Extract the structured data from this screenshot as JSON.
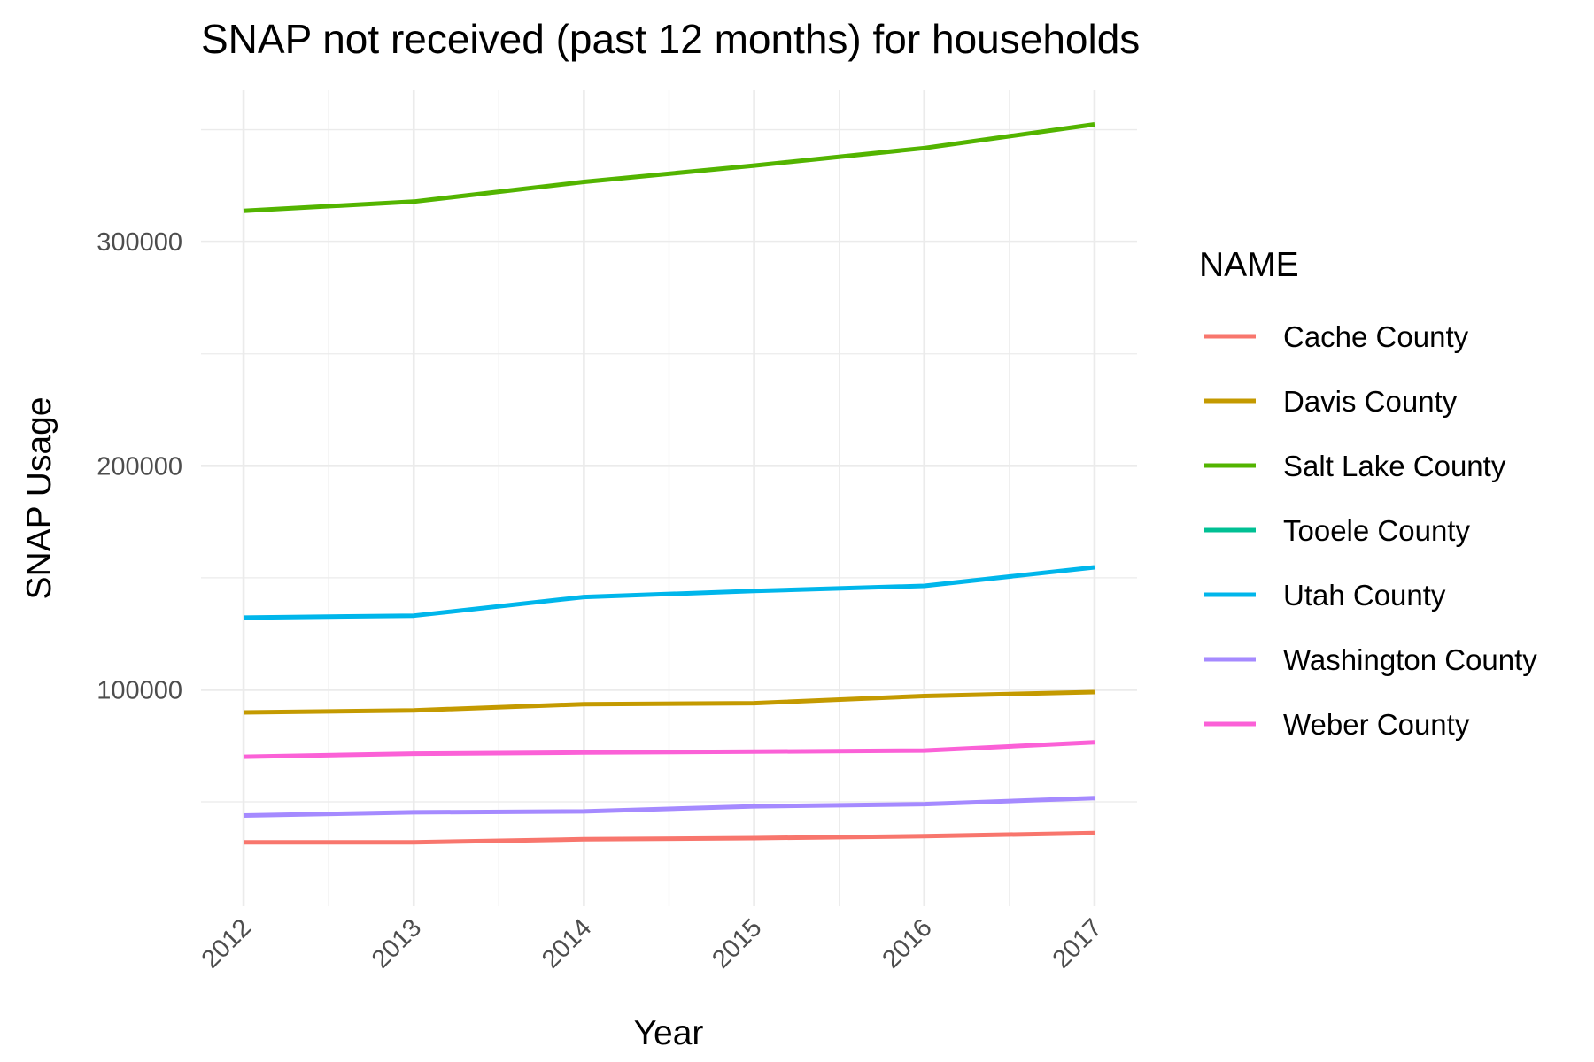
{
  "chart_data": {
    "type": "line",
    "title": "SNAP not received (past 12 months) for households",
    "x_label": "Year",
    "y_label": "SNAP Usage",
    "legend_title": "NAME",
    "legend": "right",
    "grid": true,
    "x": [
      2012,
      2013,
      2014,
      2015,
      2016,
      2017
    ],
    "xlim": [
      2011.75,
      2017.25
    ],
    "xticks": [
      2012,
      2013,
      2014,
      2015,
      2016,
      2017
    ],
    "ylim": [
      3400,
      367600
    ],
    "yticks": [
      100000,
      200000,
      300000
    ],
    "series": [
      {
        "name": "Cache County",
        "color": "#F8766D",
        "values": [
          31950,
          31950,
          33300,
          33800,
          34700,
          36100
        ]
      },
      {
        "name": "Davis County",
        "color": "#C49A00",
        "values": [
          89900,
          90800,
          93600,
          94000,
          97200,
          99000
        ]
      },
      {
        "name": "Salt Lake County",
        "color": "#53B400",
        "values": [
          313800,
          317900,
          326700,
          334000,
          341800,
          352400
        ]
      },
      {
        "name": "Tooele County",
        "color": "#00C094",
        "values": [
          null,
          null,
          null,
          null,
          null,
          null
        ]
      },
      {
        "name": "Utah County",
        "color": "#00B6EB",
        "values": [
          132200,
          133100,
          141400,
          144100,
          146400,
          154700
        ]
      },
      {
        "name": "Washington County",
        "color": "#A58AFF",
        "values": [
          43900,
          45300,
          45700,
          48000,
          49000,
          51700
        ]
      },
      {
        "name": "Weber County",
        "color": "#FB61D7",
        "values": [
          70100,
          71500,
          72000,
          72400,
          72900,
          76600
        ]
      }
    ]
  }
}
